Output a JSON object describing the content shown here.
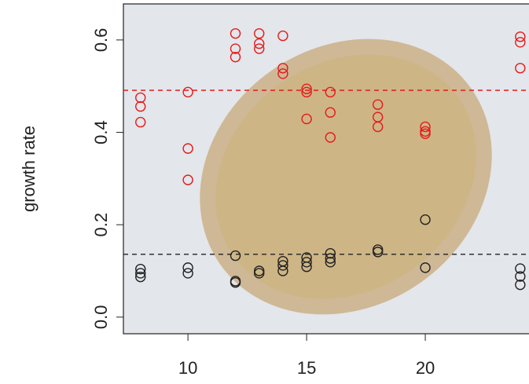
{
  "chart_data": {
    "type": "scatter",
    "ylabel": "growth rate",
    "xlim": [
      7.28,
      24.37
    ],
    "ylim": [
      -0.036,
      0.678
    ],
    "xticks": [
      10,
      15,
      20
    ],
    "yticks": [
      0.0,
      0.2,
      0.4,
      0.6
    ],
    "series": [
      {
        "color": "#e41a1c",
        "x": [
          8,
          8,
          8,
          10,
          10,
          10,
          12,
          12,
          12,
          13,
          13,
          13,
          14,
          14,
          14,
          15,
          15,
          15,
          16,
          16,
          16,
          18,
          18,
          18,
          20,
          20,
          20,
          24,
          24,
          24
        ],
        "values": [
          0.475,
          0.456,
          0.422,
          0.487,
          0.365,
          0.297,
          0.614,
          0.581,
          0.563,
          0.614,
          0.592,
          0.581,
          0.609,
          0.539,
          0.527,
          0.494,
          0.487,
          0.429,
          0.487,
          0.443,
          0.389,
          0.46,
          0.433,
          0.412,
          0.412,
          0.402,
          0.397,
          0.607,
          0.595,
          0.539
        ]
      },
      {
        "color": "#222222",
        "x": [
          8,
          8,
          8,
          10,
          10,
          12,
          12,
          12,
          13,
          13,
          14,
          14,
          14,
          15,
          15,
          15,
          16,
          16,
          16,
          18,
          18,
          20,
          20,
          24,
          24,
          24
        ],
        "values": [
          0.104,
          0.095,
          0.087,
          0.107,
          0.095,
          0.133,
          0.078,
          0.075,
          0.1,
          0.095,
          0.121,
          0.112,
          0.1,
          0.129,
          0.119,
          0.109,
          0.138,
          0.127,
          0.119,
          0.146,
          0.141,
          0.211,
          0.107,
          0.105,
          0.088,
          0.07
        ]
      }
    ],
    "hlines": [
      {
        "value": 0.491,
        "color": "#e41a1c"
      },
      {
        "value": 0.136,
        "color": "#222222"
      }
    ]
  }
}
